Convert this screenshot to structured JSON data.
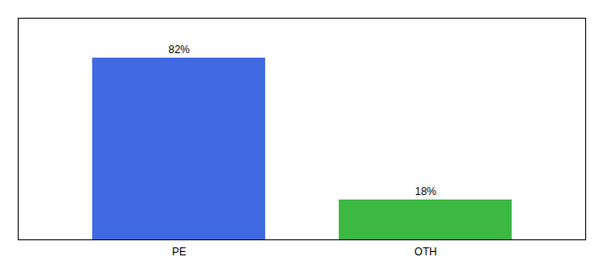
{
  "chart_data": {
    "type": "bar",
    "categories": [
      "PE",
      "OTH"
    ],
    "values": [
      82,
      18
    ],
    "value_labels": [
      "82%",
      "18%"
    ],
    "colors": [
      "#4169E1",
      "#3CB843"
    ],
    "ylim": [
      0,
      100
    ],
    "grid": false,
    "data_labels": true,
    "tick_labels": "x"
  }
}
